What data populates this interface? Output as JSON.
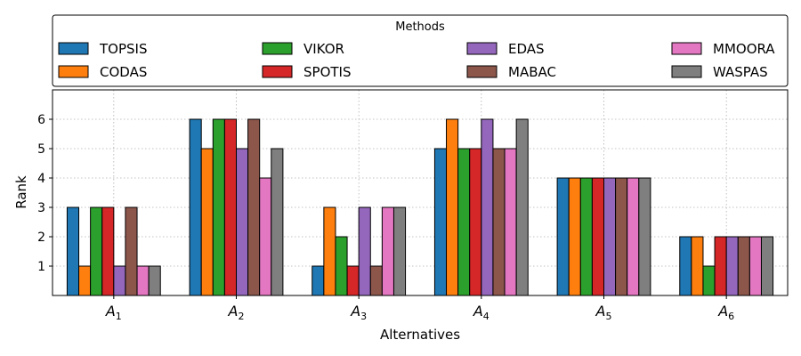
{
  "chart_data": {
    "type": "bar",
    "categories": [
      "A",
      "A",
      "A",
      "A",
      "A",
      "A"
    ],
    "category_subscripts": [
      "1",
      "2",
      "3",
      "4",
      "5",
      "6"
    ],
    "xlabel": "Alternatives",
    "ylabel": "Rank",
    "ylim": [
      0,
      7
    ],
    "yticks": [
      "1",
      "2",
      "3",
      "4",
      "5",
      "6"
    ],
    "grid": true,
    "legend": {
      "title": "Methods",
      "placement": "top",
      "columns": 4
    },
    "series": [
      {
        "name": "TOPSIS",
        "color": "#1f77b4",
        "values": [
          3,
          6,
          1,
          5,
          4,
          2
        ]
      },
      {
        "name": "CODAS",
        "color": "#ff7f0e",
        "values": [
          1,
          5,
          3,
          6,
          4,
          2
        ]
      },
      {
        "name": "VIKOR",
        "color": "#2ca02c",
        "values": [
          3,
          6,
          2,
          5,
          4,
          1
        ]
      },
      {
        "name": "SPOTIS",
        "color": "#d62728",
        "values": [
          3,
          6,
          1,
          5,
          4,
          2
        ]
      },
      {
        "name": "EDAS",
        "color": "#9467bd",
        "values": [
          1,
          5,
          3,
          6,
          4,
          2
        ]
      },
      {
        "name": "MABAC",
        "color": "#8c564b",
        "values": [
          3,
          6,
          1,
          5,
          4,
          2
        ]
      },
      {
        "name": "MMOORA",
        "color": "#e377c2",
        "values": [
          1,
          4,
          3,
          5,
          4,
          2
        ]
      },
      {
        "name": "WASPAS",
        "color": "#7f7f7f",
        "values": [
          1,
          5,
          3,
          6,
          4,
          2
        ]
      }
    ]
  }
}
